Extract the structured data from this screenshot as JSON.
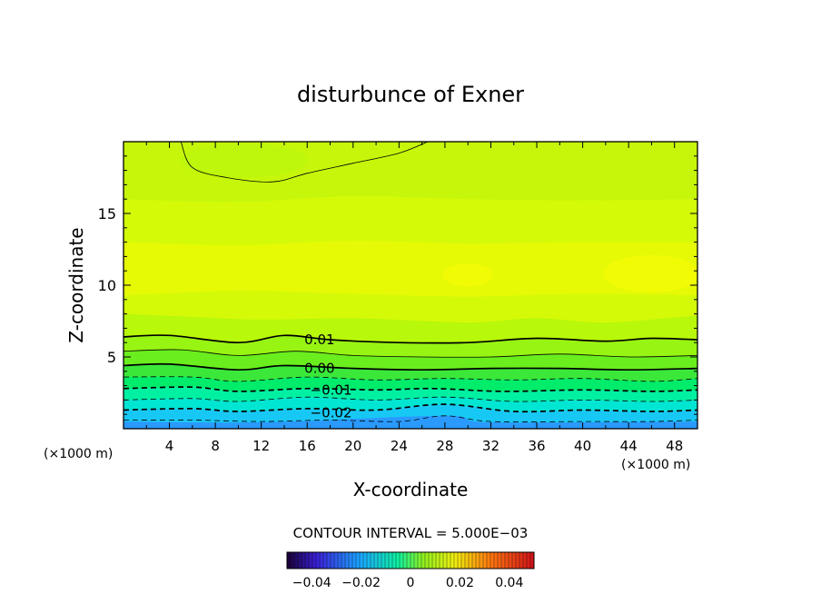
{
  "chart_data": {
    "type": "contour",
    "title": "disturbunce of Exner",
    "xlabel": "X-coordinate",
    "ylabel": "Z-coordinate",
    "x_unit_left": "(×1000 m)",
    "x_unit_right": "(×1000 m)",
    "xlim": [
      0,
      50
    ],
    "ylim": [
      0,
      20
    ],
    "x_ticks": [
      4,
      8,
      12,
      16,
      20,
      24,
      28,
      32,
      36,
      40,
      44,
      48
    ],
    "y_ticks": [
      5,
      10,
      15
    ],
    "contour_interval_text": "CONTOUR INTERVAL = 5.000E−03",
    "contour_labels": [
      {
        "text": "0.01",
        "x": 17,
        "y": 6.2
      },
      {
        "text": "0.00",
        "x": 17,
        "y": 4.2
      },
      {
        "text": "−0.01",
        "x": 18,
        "y": 2.7
      },
      {
        "text": "−0.02",
        "x": 18,
        "y": 1.1
      }
    ],
    "colorbar": {
      "min": -0.05,
      "max": 0.05,
      "tick_labels": [
        "−0.04",
        "−0.02",
        "0",
        "0.02",
        "0.04"
      ],
      "tick_values": [
        -0.04,
        -0.02,
        0,
        0.02,
        0.04
      ]
    },
    "contour_lines": [
      {
        "level": 0.015,
        "style": "solid",
        "points": [
          [
            5,
            20
          ],
          [
            6,
            18.2
          ],
          [
            9,
            17.5
          ],
          [
            13,
            17.2
          ],
          [
            16,
            17.8
          ],
          [
            20,
            18.5
          ],
          [
            24,
            19.2
          ],
          [
            26.5,
            20
          ]
        ]
      },
      {
        "level": 0.01,
        "style": "solid-thick",
        "points": [
          [
            0,
            6.4
          ],
          [
            4,
            6.5
          ],
          [
            10,
            6.0
          ],
          [
            14,
            6.5
          ],
          [
            18,
            6.2
          ],
          [
            24,
            6.0
          ],
          [
            30,
            6.0
          ],
          [
            36,
            6.3
          ],
          [
            42,
            6.1
          ],
          [
            46,
            6.3
          ],
          [
            50,
            6.2
          ]
        ]
      },
      {
        "level": 0.005,
        "style": "solid",
        "points": [
          [
            0,
            5.4
          ],
          [
            5,
            5.5
          ],
          [
            10,
            5.1
          ],
          [
            15,
            5.4
          ],
          [
            20,
            5.1
          ],
          [
            26,
            5.0
          ],
          [
            32,
            5.0
          ],
          [
            38,
            5.2
          ],
          [
            44,
            5.0
          ],
          [
            50,
            5.1
          ]
        ]
      },
      {
        "level": 0.0,
        "style": "solid-thick",
        "points": [
          [
            0,
            4.4
          ],
          [
            4,
            4.5
          ],
          [
            10,
            4.1
          ],
          [
            14,
            4.4
          ],
          [
            20,
            4.2
          ],
          [
            26,
            4.1
          ],
          [
            32,
            4.2
          ],
          [
            38,
            4.2
          ],
          [
            44,
            4.1
          ],
          [
            50,
            4.2
          ]
        ]
      },
      {
        "level": -0.005,
        "style": "dashed",
        "points": [
          [
            0,
            3.6
          ],
          [
            6,
            3.6
          ],
          [
            10,
            3.3
          ],
          [
            16,
            3.6
          ],
          [
            22,
            3.4
          ],
          [
            28,
            3.5
          ],
          [
            34,
            3.4
          ],
          [
            40,
            3.5
          ],
          [
            46,
            3.3
          ],
          [
            50,
            3.5
          ]
        ]
      },
      {
        "level": -0.01,
        "style": "dashed-thick",
        "points": [
          [
            0,
            2.8
          ],
          [
            6,
            2.9
          ],
          [
            10,
            2.6
          ],
          [
            16,
            2.8
          ],
          [
            22,
            2.7
          ],
          [
            27,
            2.8
          ],
          [
            33,
            2.6
          ],
          [
            40,
            2.7
          ],
          [
            46,
            2.6
          ],
          [
            50,
            2.7
          ]
        ]
      },
      {
        "level": -0.015,
        "style": "dashed",
        "points": [
          [
            0,
            2.0
          ],
          [
            6,
            2.1
          ],
          [
            10,
            1.9
          ],
          [
            16,
            2.2
          ],
          [
            22,
            2.0
          ],
          [
            28,
            2.2
          ],
          [
            34,
            1.9
          ],
          [
            40,
            2.0
          ],
          [
            46,
            1.9
          ],
          [
            50,
            2.0
          ]
        ]
      },
      {
        "level": -0.02,
        "style": "dashed-thick",
        "points": [
          [
            0,
            1.3
          ],
          [
            6,
            1.4
          ],
          [
            10,
            1.2
          ],
          [
            16,
            1.4
          ],
          [
            22,
            1.3
          ],
          [
            28,
            1.7
          ],
          [
            34,
            1.2
          ],
          [
            40,
            1.3
          ],
          [
            46,
            1.2
          ],
          [
            50,
            1.3
          ]
        ]
      },
      {
        "level": -0.025,
        "style": "dashed",
        "points": [
          [
            0,
            0.6
          ],
          [
            6,
            0.6
          ],
          [
            12,
            0.5
          ],
          [
            18,
            0.6
          ],
          [
            24,
            0.5
          ],
          [
            28,
            0.9
          ],
          [
            32,
            0.5
          ],
          [
            40,
            0.5
          ],
          [
            46,
            0.5
          ],
          [
            50,
            0.6
          ]
        ]
      }
    ],
    "fill_bands": [
      {
        "level": -0.03,
        "color": "#2a9aff",
        "top": [
          [
            0,
            0.5
          ],
          [
            12,
            0.45
          ],
          [
            28,
            0.9
          ],
          [
            32,
            0.45
          ],
          [
            50,
            0.5
          ]
        ]
      },
      {
        "level": -0.025,
        "color": "#18c8f4",
        "top": [
          [
            0,
            1.3
          ],
          [
            6,
            1.4
          ],
          [
            10,
            1.2
          ],
          [
            16,
            1.4
          ],
          [
            22,
            1.3
          ],
          [
            28,
            1.7
          ],
          [
            34,
            1.2
          ],
          [
            40,
            1.3
          ],
          [
            46,
            1.2
          ],
          [
            50,
            1.3
          ]
        ]
      },
      {
        "level": -0.02,
        "color": "#00e6d2",
        "top": [
          [
            0,
            2.0
          ],
          [
            6,
            2.1
          ],
          [
            10,
            1.9
          ],
          [
            16,
            2.2
          ],
          [
            22,
            2.0
          ],
          [
            28,
            2.2
          ],
          [
            34,
            1.9
          ],
          [
            40,
            2.0
          ],
          [
            46,
            1.9
          ],
          [
            50,
            2.0
          ]
        ]
      },
      {
        "level": -0.015,
        "color": "#00f0a2",
        "top": [
          [
            0,
            2.8
          ],
          [
            6,
            2.9
          ],
          [
            10,
            2.6
          ],
          [
            16,
            2.8
          ],
          [
            22,
            2.7
          ],
          [
            27,
            2.8
          ],
          [
            33,
            2.6
          ],
          [
            40,
            2.7
          ],
          [
            46,
            2.6
          ],
          [
            50,
            2.7
          ]
        ]
      },
      {
        "level": -0.01,
        "color": "#00ec6a",
        "top": [
          [
            0,
            3.6
          ],
          [
            6,
            3.6
          ],
          [
            10,
            3.3
          ],
          [
            16,
            3.6
          ],
          [
            22,
            3.4
          ],
          [
            28,
            3.5
          ],
          [
            34,
            3.4
          ],
          [
            40,
            3.5
          ],
          [
            46,
            3.3
          ],
          [
            50,
            3.5
          ]
        ]
      },
      {
        "level": -0.005,
        "color": "#3be83a",
        "top": [
          [
            0,
            4.4
          ],
          [
            4,
            4.5
          ],
          [
            10,
            4.1
          ],
          [
            14,
            4.4
          ],
          [
            20,
            4.2
          ],
          [
            26,
            4.1
          ],
          [
            32,
            4.2
          ],
          [
            38,
            4.2
          ],
          [
            44,
            4.1
          ],
          [
            50,
            4.2
          ]
        ]
      },
      {
        "level": 0.0,
        "color": "#6aee1e",
        "top": [
          [
            0,
            5.4
          ],
          [
            5,
            5.5
          ],
          [
            10,
            5.1
          ],
          [
            15,
            5.4
          ],
          [
            20,
            5.1
          ],
          [
            26,
            5.0
          ],
          [
            32,
            5.0
          ],
          [
            38,
            5.2
          ],
          [
            44,
            5.0
          ],
          [
            50,
            5.1
          ]
        ]
      },
      {
        "level": 0.005,
        "color": "#98f412",
        "top": [
          [
            0,
            6.4
          ],
          [
            4,
            6.5
          ],
          [
            10,
            6.0
          ],
          [
            14,
            6.5
          ],
          [
            18,
            6.2
          ],
          [
            24,
            6.0
          ],
          [
            30,
            6.0
          ],
          [
            36,
            6.3
          ],
          [
            42,
            6.1
          ],
          [
            46,
            6.3
          ],
          [
            50,
            6.2
          ]
        ]
      },
      {
        "level": 0.01,
        "color": "#b8f80a",
        "top": [
          [
            0,
            8.0
          ],
          [
            6,
            7.8
          ],
          [
            12,
            7.6
          ],
          [
            20,
            7.7
          ],
          [
            30,
            7.4
          ],
          [
            36,
            7.7
          ],
          [
            42,
            7.4
          ],
          [
            50,
            7.9
          ]
        ]
      },
      {
        "level": 0.015,
        "color": "#d4fa08",
        "top": [
          [
            0,
            9.3
          ],
          [
            10,
            9.6
          ],
          [
            20,
            9.4
          ],
          [
            30,
            9.2
          ],
          [
            40,
            9.4
          ],
          [
            50,
            9.3
          ]
        ]
      },
      {
        "level": 0.02,
        "color": "#e6fa05",
        "top": [
          [
            0,
            13.0
          ],
          [
            10,
            12.8
          ],
          [
            20,
            13.1
          ],
          [
            30,
            12.9
          ],
          [
            40,
            13.0
          ],
          [
            50,
            13.0
          ]
        ]
      },
      {
        "level": 0.015,
        "color": "#d4fa08",
        "top": [
          [
            0,
            16.0
          ],
          [
            10,
            15.8
          ],
          [
            20,
            16.2
          ],
          [
            30,
            16.0
          ],
          [
            40,
            15.9
          ],
          [
            50,
            16.0
          ]
        ]
      },
      {
        "level": 0.01,
        "color": "#c6f70a",
        "top": [
          [
            0,
            20
          ],
          [
            50,
            20
          ]
        ]
      }
    ],
    "highlights": [
      {
        "color": "#f2fb04",
        "cx": 46,
        "cy": 10.8,
        "rx": 4.2,
        "ry": 1.3
      },
      {
        "color": "#f2fb04",
        "cx": 30,
        "cy": 10.7,
        "rx": 2.2,
        "ry": 0.8
      },
      {
        "color": "#bdf60b",
        "cx": 10.5,
        "cy": 18.7,
        "rx": 5.5,
        "ry": 1.2
      }
    ]
  }
}
